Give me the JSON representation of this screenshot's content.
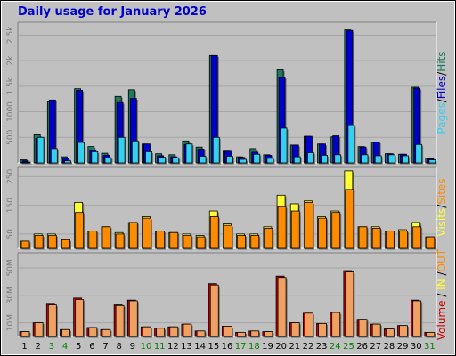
{
  "title": "Daily usage for January 2026",
  "colors": {
    "background": "#c0c0c0",
    "panel": "#c0c0c0",
    "grid": "#a6a6a6",
    "hits": "#1e7a5f",
    "files": "#0000cc",
    "pages": "#33d1ef",
    "visits": "#ffff33",
    "sites": "#ff8c00",
    "kbytes_in": "#cc0000",
    "kbytes_out": "#f0a060",
    "weekend_label": "#008000",
    "weekday_label": "#000000"
  },
  "chart_data": [
    {
      "type": "bar",
      "name_legend": [
        "Pages",
        "Files",
        "Hits"
      ],
      "legend_sep": "/",
      "categories": [
        "1",
        "2",
        "3",
        "4",
        "5",
        "6",
        "7",
        "8",
        "9",
        "10",
        "11",
        "12",
        "13",
        "14",
        "15",
        "16",
        "17",
        "18",
        "19",
        "20",
        "21",
        "22",
        "23",
        "24",
        "25",
        "26",
        "27",
        "28",
        "29",
        "30",
        "31"
      ],
      "weekend": [
        3,
        4,
        10,
        11,
        17,
        18,
        24,
        25,
        31
      ],
      "ylim": [
        0,
        2750
      ],
      "yticks": [
        500,
        1000,
        1500,
        2000,
        2500
      ],
      "ytick_labels": [
        "500",
        "1000",
        "1.5k",
        "2k",
        "2.5k"
      ],
      "series": [
        {
          "key": "hits",
          "values": [
            60,
            550,
            1200,
            120,
            1450,
            320,
            190,
            1300,
            1430,
            370,
            180,
            160,
            430,
            310,
            2100,
            230,
            120,
            280,
            160,
            1820,
            350,
            520,
            370,
            510,
            2600,
            320,
            410,
            180,
            170,
            1480,
            90
          ]
        },
        {
          "key": "files",
          "values": [
            40,
            480,
            1230,
            90,
            1420,
            250,
            150,
            1180,
            1260,
            370,
            140,
            120,
            360,
            270,
            2100,
            230,
            110,
            210,
            150,
            1670,
            350,
            520,
            370,
            530,
            2590,
            310,
            410,
            180,
            170,
            1460,
            80
          ]
        },
        {
          "key": "pages",
          "values": [
            15,
            500,
            280,
            40,
            400,
            220,
            100,
            500,
            430,
            220,
            110,
            100,
            370,
            130,
            500,
            130,
            70,
            170,
            90,
            680,
            120,
            200,
            150,
            160,
            730,
            160,
            140,
            160,
            140,
            360,
            60
          ]
        }
      ]
    },
    {
      "type": "bar",
      "name_legend": [
        "Visits",
        "Sites"
      ],
      "legend_sep": "/",
      "categories": [
        "1",
        "2",
        "3",
        "4",
        "5",
        "6",
        "7",
        "8",
        "9",
        "10",
        "11",
        "12",
        "13",
        "14",
        "15",
        "16",
        "17",
        "18",
        "19",
        "20",
        "21",
        "22",
        "23",
        "24",
        "25",
        "26",
        "27",
        "28",
        "29",
        "30",
        "31"
      ],
      "ylim": [
        0,
        282
      ],
      "yticks": [
        50,
        150,
        250
      ],
      "ytick_labels": [
        "50",
        "150",
        "250"
      ],
      "series": [
        {
          "key": "visits",
          "values": [
            25,
            50,
            50,
            30,
            160,
            60,
            75,
            55,
            90,
            110,
            60,
            55,
            50,
            45,
            130,
            85,
            50,
            50,
            75,
            185,
            155,
            165,
            110,
            130,
            270,
            75,
            75,
            60,
            65,
            90,
            40
          ]
        },
        {
          "key": "sites",
          "values": [
            25,
            45,
            45,
            30,
            125,
            60,
            75,
            50,
            90,
            105,
            60,
            55,
            45,
            40,
            110,
            80,
            45,
            45,
            70,
            145,
            130,
            160,
            105,
            125,
            205,
            75,
            70,
            60,
            60,
            75,
            40
          ]
        }
      ]
    },
    {
      "type": "bar",
      "name_legend": [
        "Volume",
        "IN",
        "OUT"
      ],
      "legend_sep": "/",
      "categories": [
        "1",
        "2",
        "3",
        "4",
        "5",
        "6",
        "7",
        "8",
        "9",
        "10",
        "11",
        "12",
        "13",
        "14",
        "15",
        "16",
        "17",
        "18",
        "19",
        "20",
        "21",
        "22",
        "23",
        "24",
        "25",
        "26",
        "27",
        "28",
        "29",
        "30",
        "31"
      ],
      "ylim": [
        0,
        61
      ],
      "yticks": [
        10,
        30,
        50
      ],
      "ytick_labels": [
        "10M",
        "30M",
        "50M"
      ],
      "series": [
        {
          "key": "kbytes_in",
          "values": [
            3.5,
            10,
            23.5,
            5,
            28,
            6.5,
            5,
            23,
            26.5,
            7,
            6,
            7,
            9,
            4,
            38.5,
            7.5,
            3,
            4,
            3.5,
            44,
            10,
            17,
            9.5,
            17.5,
            48,
            12.5,
            9,
            5.5,
            8,
            26.5,
            3
          ]
        },
        {
          "key": "kbytes_out",
          "values": [
            3.5,
            10,
            23,
            5,
            27,
            6.5,
            5,
            22.5,
            26,
            7,
            6,
            7,
            9,
            4,
            37.5,
            7.5,
            3,
            4,
            3.5,
            43,
            10,
            17,
            9.5,
            17.5,
            47,
            12.5,
            9,
            5.5,
            8,
            26,
            3
          ]
        }
      ]
    }
  ]
}
